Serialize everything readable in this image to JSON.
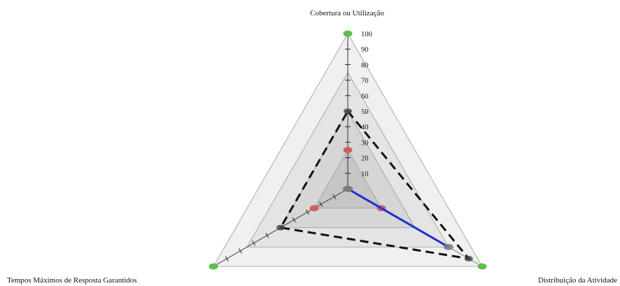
{
  "chart_data": {
    "type": "radar",
    "axes": [
      "Cobertura ou Utilização",
      "Distribuição da Atividade",
      "Tempos Máximos de Resposta Garantidos"
    ],
    "r_ticks": [
      10,
      20,
      30,
      40,
      50,
      60,
      70,
      80,
      90,
      100
    ],
    "r_range": [
      0,
      100
    ],
    "bands": [
      {
        "level": 100,
        "fill": "#f0f0f0"
      },
      {
        "level": 75,
        "fill": "#e4e4e4"
      },
      {
        "level": 50,
        "fill": "#d6d6d6"
      },
      {
        "level": 25,
        "fill": "#c6c6c6"
      }
    ],
    "series": [
      {
        "values": [
          100,
          100,
          100
        ],
        "style": "marker",
        "color": "#5cbf4a"
      },
      {
        "values": [
          50,
          90,
          50
        ],
        "style": "dashed",
        "color": "#111111"
      },
      {
        "values": [
          25,
          25,
          25
        ],
        "style": "marker",
        "color": "#d06060"
      },
      {
        "values": [
          0,
          75,
          0
        ],
        "style": "solid",
        "color": "#1f2fd0"
      }
    ]
  }
}
